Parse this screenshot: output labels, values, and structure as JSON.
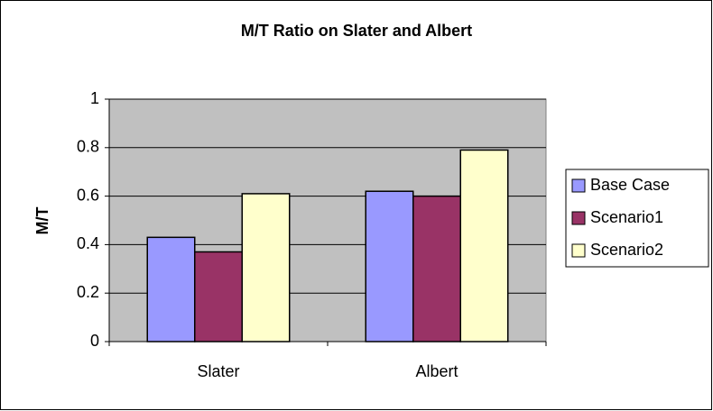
{
  "chart_data": {
    "type": "bar",
    "title": "M/T Ratio on Slater and Albert",
    "y_label": "M/T",
    "categories": [
      "Slater",
      "Albert"
    ],
    "series": [
      {
        "name": "Base Case",
        "color": "#9999ff",
        "values": [
          0.43,
          0.62
        ]
      },
      {
        "name": "Scenario1",
        "color": "#993366",
        "values": [
          0.37,
          0.6
        ]
      },
      {
        "name": "Scenario2",
        "color": "#ffffcc",
        "values": [
          0.61,
          0.79
        ]
      }
    ],
    "ylim": [
      0,
      1
    ],
    "yticks": [
      0,
      0.2,
      0.4,
      0.6,
      0.8,
      1
    ],
    "grid": true,
    "legend": "right"
  }
}
